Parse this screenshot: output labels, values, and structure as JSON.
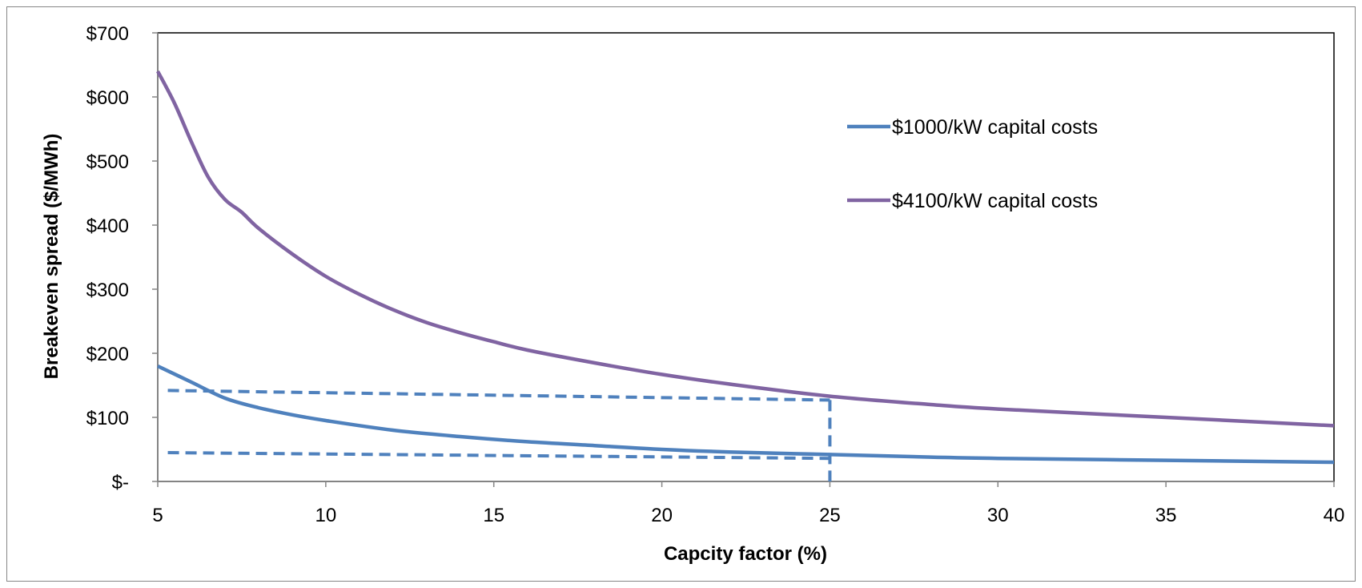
{
  "chart_data": {
    "type": "line",
    "title": "",
    "xlabel": "Capcity factor (%)",
    "ylabel": "Breakeven spread ($/MWh)",
    "xlim": [
      5,
      40
    ],
    "ylim": [
      0,
      700
    ],
    "x_ticks": [
      5,
      10,
      15,
      20,
      25,
      30,
      35,
      40
    ],
    "y_ticks": [
      {
        "value": 0,
        "label": "$-"
      },
      {
        "value": 100,
        "label": "$100"
      },
      {
        "value": 200,
        "label": "$200"
      },
      {
        "value": 300,
        "label": "$300"
      },
      {
        "value": 400,
        "label": "$400"
      },
      {
        "value": 500,
        "label": "$500"
      },
      {
        "value": 600,
        "label": "$600"
      },
      {
        "value": 700,
        "label": "$700"
      }
    ],
    "grid": false,
    "legend_position": "right",
    "series": [
      {
        "name": "$1000/kW capital costs",
        "color": "#4F81BD",
        "x": [
          5,
          6,
          7,
          8,
          9,
          10,
          12,
          14,
          16,
          18,
          20,
          22,
          25,
          28,
          30,
          35,
          40
        ],
        "y": [
          180,
          155,
          130,
          115,
          104,
          95,
          80,
          70,
          62,
          56,
          50,
          46,
          42,
          38,
          36,
          33,
          30
        ]
      },
      {
        "name": "$4100/kW capital costs",
        "color": "#8064A2",
        "x": [
          5,
          5.5,
          6,
          6.5,
          7,
          7.5,
          8,
          9,
          10,
          11,
          12,
          13,
          14,
          15,
          16,
          18,
          20,
          22,
          25,
          28,
          30,
          35,
          40
        ],
        "y": [
          640,
          590,
          530,
          475,
          440,
          420,
          395,
          355,
          320,
          292,
          268,
          248,
          232,
          218,
          205,
          185,
          167,
          152,
          133,
          120,
          113,
          100,
          87
        ]
      }
    ],
    "reference_lines": [
      {
        "style": "dashed",
        "color": "#4F81BD",
        "x": [
          5.3,
          25
        ],
        "y": [
          142,
          127
        ]
      },
      {
        "style": "dashed",
        "color": "#4F81BD",
        "x": [
          5.3,
          25
        ],
        "y": [
          45,
          36
        ]
      },
      {
        "style": "dashed",
        "color": "#4F81BD",
        "x": [
          25,
          25
        ],
        "y": [
          127,
          0
        ]
      }
    ]
  }
}
